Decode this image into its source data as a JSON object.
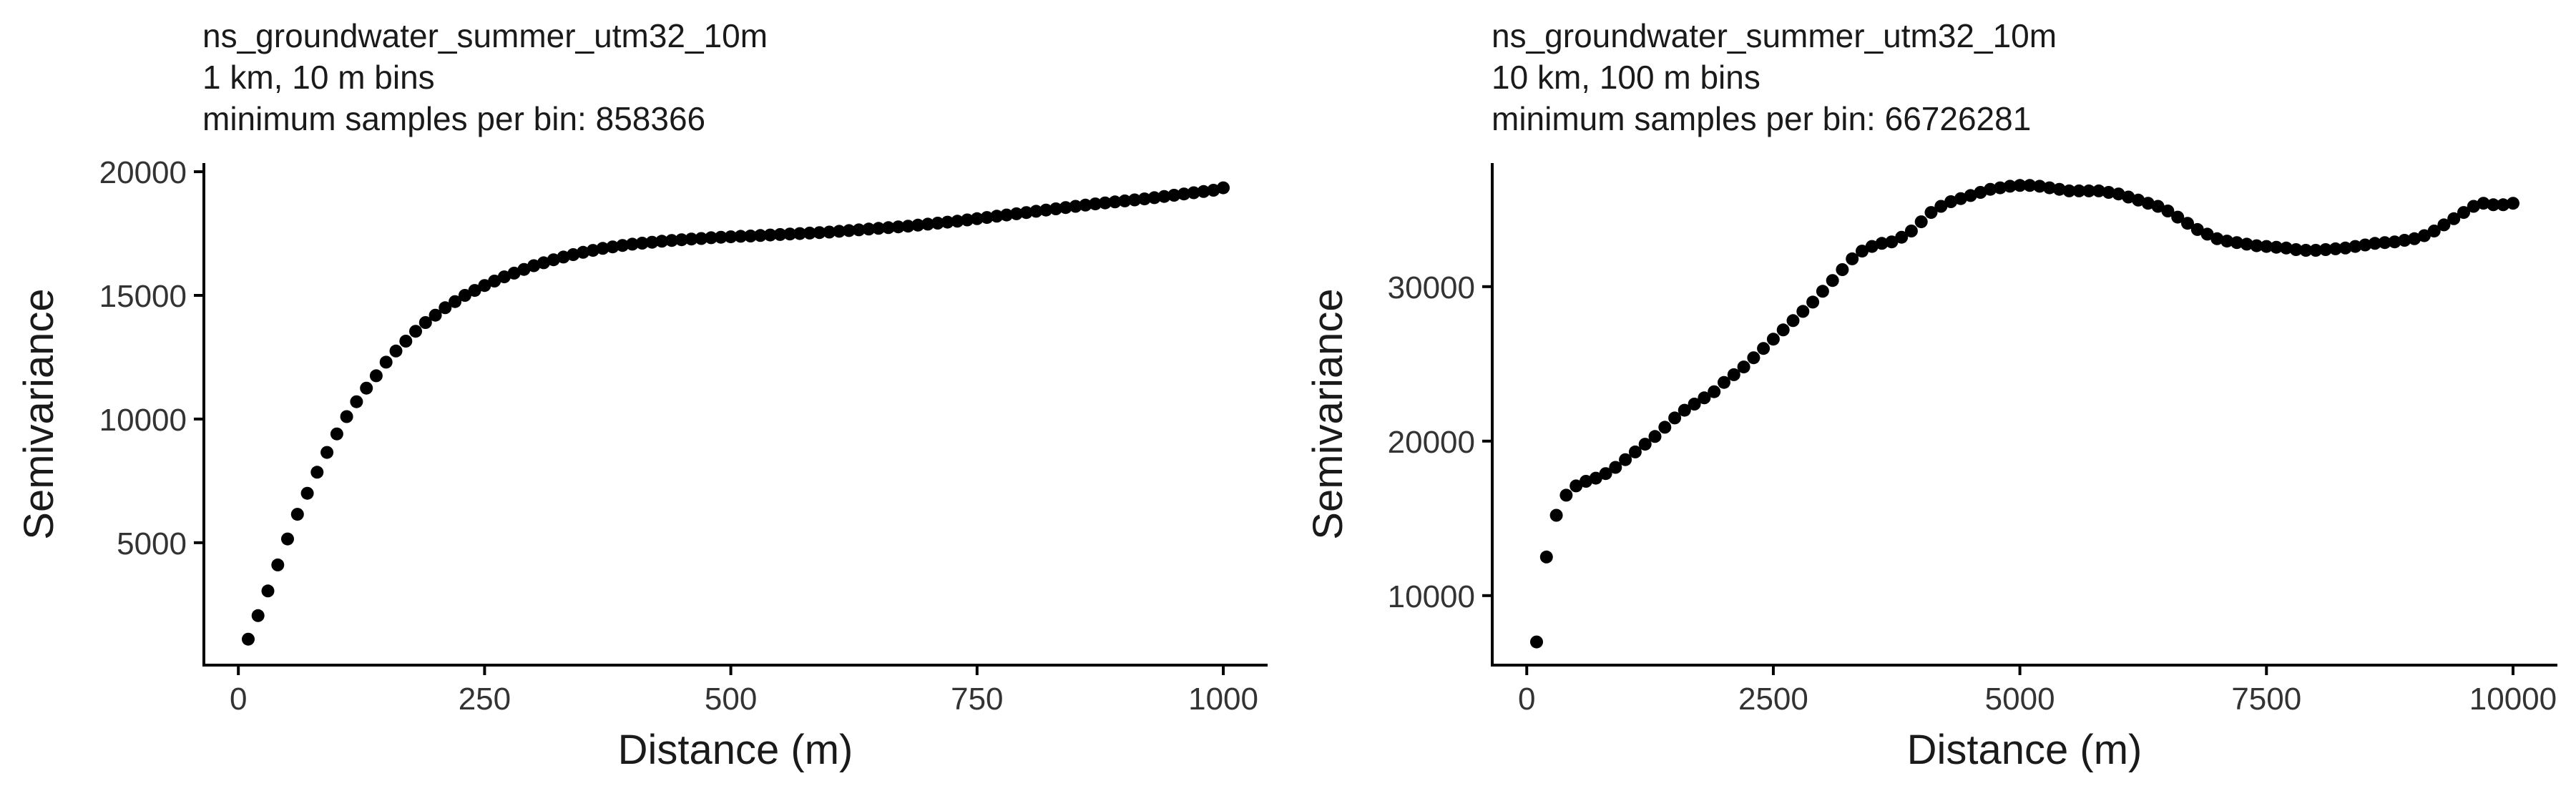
{
  "chart_data": [
    {
      "type": "scatter",
      "title_lines": [
        "ns_groundwater_summer_utm32_10m",
        "1 km, 10 m bins",
        "minimum samples per bin: 858366"
      ],
      "xlabel": "Distance (m)",
      "ylabel": "Semivariance",
      "xlim": [
        -35,
        1045
      ],
      "ylim": [
        50,
        20350
      ],
      "xticks": [
        0,
        250,
        500,
        750,
        1000
      ],
      "xtick_labels": [
        "0",
        "250",
        "500",
        "750",
        "1000"
      ],
      "yticks": [
        5000,
        10000,
        15000,
        20000
      ],
      "ytick_labels": [
        "5000",
        "10000",
        "15000",
        "20000"
      ],
      "grid": false,
      "x": [
        10,
        20,
        30,
        40,
        50,
        60,
        70,
        80,
        90,
        100,
        110,
        120,
        130,
        140,
        150,
        160,
        170,
        180,
        190,
        200,
        210,
        220,
        230,
        240,
        250,
        260,
        270,
        280,
        290,
        300,
        310,
        320,
        330,
        340,
        350,
        360,
        370,
        380,
        390,
        400,
        410,
        420,
        430,
        440,
        450,
        460,
        470,
        480,
        490,
        500,
        510,
        520,
        530,
        540,
        550,
        560,
        570,
        580,
        590,
        600,
        610,
        620,
        630,
        640,
        650,
        660,
        670,
        680,
        690,
        700,
        710,
        720,
        730,
        740,
        750,
        760,
        770,
        780,
        790,
        800,
        810,
        820,
        830,
        840,
        850,
        860,
        870,
        880,
        890,
        900,
        910,
        920,
        930,
        940,
        950,
        960,
        970,
        980,
        990,
        1000
      ],
      "y": [
        1100,
        2050,
        3050,
        4100,
        5150,
        6150,
        7000,
        7850,
        8650,
        9400,
        10100,
        10700,
        11250,
        11750,
        12300,
        12750,
        13150,
        13550,
        13900,
        14200,
        14500,
        14750,
        15000,
        15200,
        15400,
        15580,
        15750,
        15900,
        16050,
        16200,
        16320,
        16440,
        16550,
        16650,
        16740,
        16820,
        16900,
        16960,
        17020,
        17070,
        17110,
        17150,
        17190,
        17220,
        17250,
        17280,
        17300,
        17330,
        17350,
        17370,
        17390,
        17400,
        17420,
        17440,
        17460,
        17480,
        17500,
        17520,
        17540,
        17560,
        17590,
        17620,
        17650,
        17680,
        17710,
        17740,
        17770,
        17800,
        17840,
        17880,
        17920,
        17960,
        18000,
        18050,
        18100,
        18150,
        18200,
        18250,
        18300,
        18350,
        18400,
        18450,
        18500,
        18550,
        18600,
        18650,
        18700,
        18740,
        18780,
        18820,
        18860,
        18900,
        18950,
        19000,
        19050,
        19100,
        19150,
        19200,
        19250,
        19350
      ]
    },
    {
      "type": "scatter",
      "title_lines": [
        "ns_groundwater_summer_utm32_10m",
        "10 km, 100 m bins",
        "minimum samples per bin: 66726281"
      ],
      "xlabel": "Distance (m)",
      "ylabel": "Semivariance",
      "xlim": [
        -350,
        10450
      ],
      "ylim": [
        5500,
        38000
      ],
      "xticks": [
        0,
        2500,
        5000,
        7500,
        10000
      ],
      "xtick_labels": [
        "0",
        "2500",
        "5000",
        "7500",
        "10000"
      ],
      "yticks": [
        10000,
        20000,
        30000
      ],
      "ytick_labels": [
        "10000",
        "20000",
        "30000"
      ],
      "grid": false,
      "x": [
        100,
        200,
        300,
        400,
        500,
        600,
        700,
        800,
        900,
        1000,
        1100,
        1200,
        1300,
        1400,
        1500,
        1600,
        1700,
        1800,
        1900,
        2000,
        2100,
        2200,
        2300,
        2400,
        2500,
        2600,
        2700,
        2800,
        2900,
        3000,
        3100,
        3200,
        3300,
        3400,
        3500,
        3600,
        3700,
        3800,
        3900,
        4000,
        4100,
        4200,
        4300,
        4400,
        4500,
        4600,
        4700,
        4800,
        4900,
        5000,
        5100,
        5200,
        5300,
        5400,
        5500,
        5600,
        5700,
        5800,
        5900,
        6000,
        6100,
        6200,
        6300,
        6400,
        6500,
        6600,
        6700,
        6800,
        6900,
        7000,
        7100,
        7200,
        7300,
        7400,
        7500,
        7600,
        7700,
        7800,
        7900,
        8000,
        8100,
        8200,
        8300,
        8400,
        8500,
        8600,
        8700,
        8800,
        8900,
        9000,
        9100,
        9200,
        9300,
        9400,
        9500,
        9600,
        9700,
        9800,
        9900,
        10000
      ],
      "y": [
        7000,
        12500,
        15200,
        16500,
        17100,
        17400,
        17600,
        17900,
        18300,
        18800,
        19300,
        19800,
        20300,
        20900,
        21500,
        22000,
        22400,
        22800,
        23200,
        23800,
        24300,
        24800,
        25400,
        26000,
        26600,
        27200,
        27800,
        28400,
        29000,
        29700,
        30400,
        31100,
        31800,
        32300,
        32600,
        32800,
        32900,
        33200,
        33600,
        34200,
        34800,
        35200,
        35500,
        35700,
        35900,
        36100,
        36300,
        36400,
        36500,
        36550,
        36550,
        36500,
        36400,
        36300,
        36200,
        36200,
        36200,
        36200,
        36100,
        36000,
        35800,
        35600,
        35400,
        35200,
        34900,
        34500,
        34100,
        33700,
        33400,
        33100,
        32950,
        32850,
        32750,
        32650,
        32600,
        32550,
        32500,
        32400,
        32350,
        32350,
        32400,
        32450,
        32500,
        32600,
        32700,
        32800,
        32850,
        32900,
        33000,
        33100,
        33300,
        33600,
        34000,
        34400,
        34800,
        35200,
        35400,
        35300,
        35300,
        35400
      ]
    }
  ]
}
